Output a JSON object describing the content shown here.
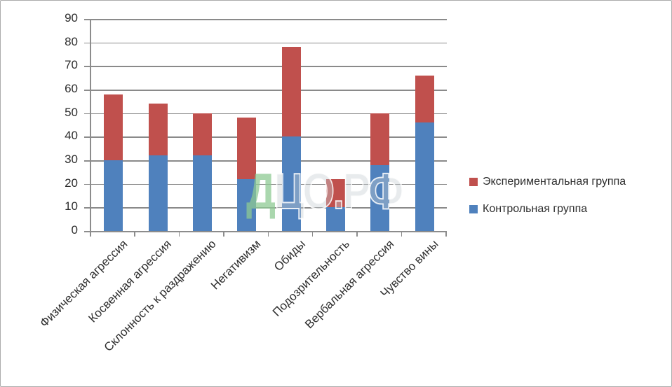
{
  "legend": {
    "items": [
      {
        "label": "Экспериментальная группа",
        "color": "#C0504D"
      },
      {
        "label": "Контрольная группа",
        "color": "#4F81BD"
      }
    ]
  },
  "watermark": {
    "lead": "Д",
    "rest": "ЦО.РФ"
  },
  "chart_data": {
    "type": "bar",
    "stacked": true,
    "title": "",
    "xlabel": "",
    "ylabel": "",
    "categories": [
      "Физическая агрессия",
      "Косвенная агрессия",
      "Склонность к раздражению",
      "Негативизм",
      "Обиды",
      "Подозрительность",
      "Вербальная агрессия",
      "Чувство вины"
    ],
    "series": [
      {
        "name": "Контрольная группа",
        "color": "#4F81BD",
        "values": [
          30,
          32,
          32,
          22,
          40,
          10,
          28,
          46
        ]
      },
      {
        "name": "Экспериментальная группа",
        "color": "#C0504D",
        "values": [
          28,
          22,
          18,
          26,
          38,
          12,
          22,
          20
        ]
      }
    ],
    "stack_totals": [
      58,
      54,
      50,
      48,
      78,
      22,
      50,
      66
    ],
    "ylim": [
      0,
      90
    ],
    "yticks": [
      0,
      10,
      20,
      30,
      40,
      50,
      60,
      70,
      80,
      90
    ],
    "grid": true,
    "legend_position": "right",
    "axis_color": "#8c8c8c",
    "text_color": "#2e2e2e"
  }
}
